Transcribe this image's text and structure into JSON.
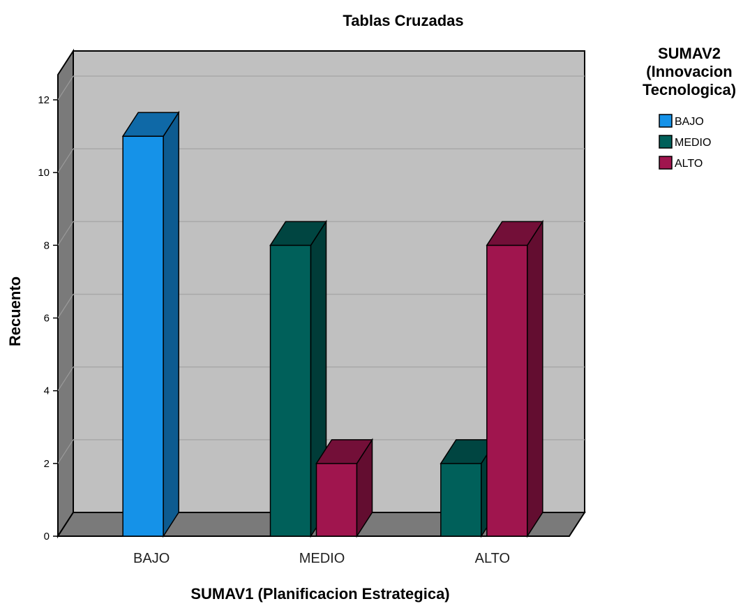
{
  "chart_data": {
    "type": "bar",
    "style": "3d-clustered",
    "title": "Tablas Cruzadas",
    "xlabel": "SUMAV1 (Planificacion Estrategica)",
    "ylabel": "Recuento",
    "ylim": [
      0,
      12
    ],
    "yticks": [
      0,
      2,
      4,
      6,
      8,
      10,
      12
    ],
    "grid": true,
    "legend_position": "top-right",
    "legend_title_lines": [
      "SUMAV2",
      "(Innovacion",
      "Tecnologica)"
    ],
    "categories": [
      "BAJO",
      "MEDIO",
      "ALTO"
    ],
    "series": [
      {
        "name": "BAJO",
        "color": "#1592e8",
        "values": [
          11,
          0,
          0
        ]
      },
      {
        "name": "MEDIO",
        "color": "#00605a",
        "values": [
          0,
          8,
          2
        ]
      },
      {
        "name": "ALTO",
        "color": "#a0154e",
        "values": [
          0,
          2,
          8
        ]
      }
    ]
  }
}
